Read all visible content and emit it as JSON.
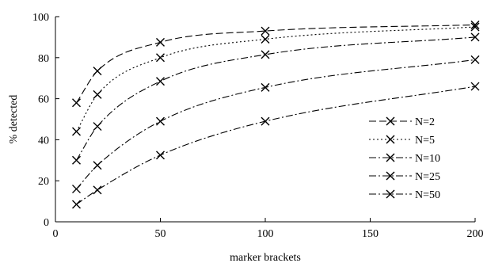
{
  "chart_data": {
    "type": "line",
    "xlabel": "marker brackets",
    "ylabel": "% detected",
    "xlim": [
      0,
      200
    ],
    "ylim": [
      0,
      100
    ],
    "xticks": [
      0,
      50,
      100,
      150,
      200
    ],
    "yticks": [
      0,
      20,
      40,
      60,
      80,
      100
    ],
    "grid": false,
    "legend_position": "right",
    "x": [
      10,
      20,
      50,
      100,
      200
    ],
    "series": [
      {
        "name": "N=2",
        "values": [
          58,
          73.5,
          87.5,
          93,
          96
        ],
        "dash": "long-dash"
      },
      {
        "name": "N=5",
        "values": [
          44,
          62,
          80,
          89,
          95
        ],
        "dash": "dotted"
      },
      {
        "name": "N=10",
        "values": [
          30,
          46.5,
          68.5,
          81.5,
          90
        ],
        "dash": "dash-dot"
      },
      {
        "name": "N=25",
        "values": [
          16,
          27.5,
          49,
          65.5,
          79
        ],
        "dash": "dash-dot"
      },
      {
        "name": "N=50",
        "values": [
          8.5,
          15.5,
          32.5,
          49,
          66
        ],
        "dash": "dash-dot"
      }
    ]
  }
}
